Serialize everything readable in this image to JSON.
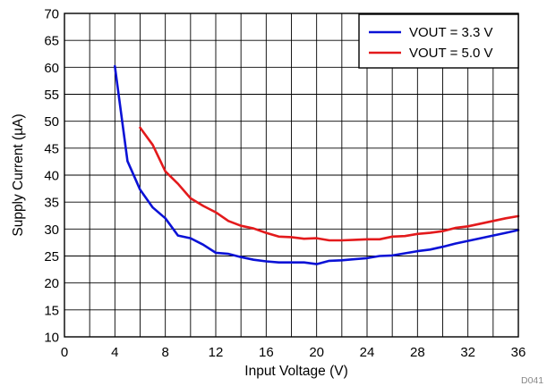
{
  "chart_data": {
    "type": "line",
    "xlabel": "Input Voltage (V)",
    "ylabel": "Supply Current (µA)",
    "xlim": [
      0,
      36
    ],
    "ylim": [
      10,
      70
    ],
    "x_ticks": [
      0,
      4,
      8,
      12,
      16,
      20,
      24,
      28,
      32,
      36
    ],
    "y_ticks": [
      10,
      15,
      20,
      25,
      30,
      35,
      40,
      45,
      50,
      55,
      60,
      65,
      70
    ],
    "grid": true,
    "grid_x_step": 2,
    "grid_y_step": 5,
    "legend_position": "top-right",
    "series": [
      {
        "name": "VOUT = 3.3 V",
        "color": "#0b12d6",
        "points": [
          [
            4,
            60.2
          ],
          [
            5,
            42.6
          ],
          [
            6,
            37.3
          ],
          [
            7,
            34.0
          ],
          [
            8,
            32.0
          ],
          [
            9,
            28.8
          ],
          [
            10,
            28.3
          ],
          [
            11,
            27.1
          ],
          [
            12,
            25.6
          ],
          [
            13,
            25.4
          ],
          [
            14,
            24.8
          ],
          [
            15,
            24.3
          ],
          [
            16,
            24.0
          ],
          [
            17,
            23.8
          ],
          [
            18,
            23.8
          ],
          [
            19,
            23.8
          ],
          [
            20,
            23.5
          ],
          [
            21,
            24.1
          ],
          [
            22,
            24.2
          ],
          [
            23,
            24.4
          ],
          [
            24,
            24.6
          ],
          [
            25,
            25.0
          ],
          [
            26,
            25.1
          ],
          [
            27,
            25.5
          ],
          [
            28,
            25.9
          ],
          [
            29,
            26.2
          ],
          [
            30,
            26.7
          ],
          [
            31,
            27.3
          ],
          [
            32,
            27.8
          ],
          [
            33,
            28.3
          ],
          [
            34,
            28.8
          ],
          [
            35,
            29.3
          ],
          [
            36,
            29.8
          ]
        ]
      },
      {
        "name": "VOUT = 5.0 V",
        "color": "#e31a1c",
        "points": [
          [
            6,
            48.8
          ],
          [
            7,
            45.6
          ],
          [
            8,
            40.7
          ],
          [
            9,
            38.4
          ],
          [
            10,
            35.7
          ],
          [
            11,
            34.3
          ],
          [
            12,
            33.1
          ],
          [
            13,
            31.5
          ],
          [
            14,
            30.6
          ],
          [
            15,
            30.1
          ],
          [
            16,
            29.3
          ],
          [
            17,
            28.6
          ],
          [
            18,
            28.5
          ],
          [
            19,
            28.2
          ],
          [
            20,
            28.3
          ],
          [
            21,
            27.9
          ],
          [
            22,
            27.9
          ],
          [
            23,
            28.0
          ],
          [
            24,
            28.1
          ],
          [
            25,
            28.1
          ],
          [
            26,
            28.6
          ],
          [
            27,
            28.7
          ],
          [
            28,
            29.1
          ],
          [
            29,
            29.3
          ],
          [
            30,
            29.6
          ],
          [
            31,
            30.2
          ],
          [
            32,
            30.5
          ],
          [
            33,
            31.0
          ],
          [
            34,
            31.5
          ],
          [
            35,
            32.0
          ],
          [
            36,
            32.4
          ]
        ]
      }
    ]
  },
  "figure_code": "D041"
}
